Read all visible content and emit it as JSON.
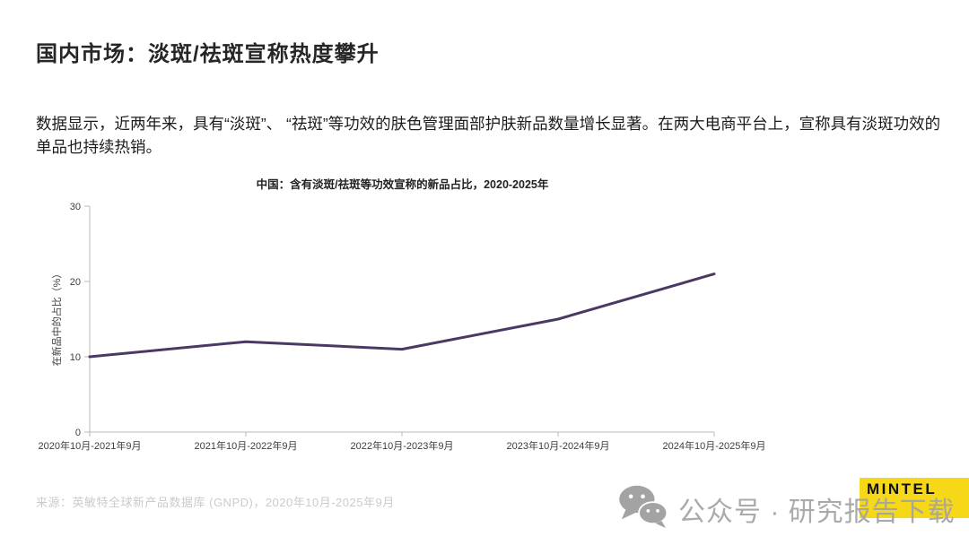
{
  "slide": {
    "title": "国内市场：淡斑/祛斑宣称热度攀升",
    "body_text": "数据显示，近两年来，具有“淡斑”、 “祛斑”等功效的肤色管理面部护肤新品数量增长显著。在两大电商平台上，宣称具有淡斑功效的单品也持续热销。",
    "source_note": "来源：英敏特全球新产品数据库 (GNPD)，2020年10月-2025年9月"
  },
  "chart_data": {
    "type": "line",
    "title": "中国：含有淡斑/祛斑等功效宣称的新品占比，2020-2025年",
    "ylabel": "在新品中的占比（%）",
    "xlabel": "",
    "categories": [
      "2020年10月-2021年9月",
      "2021年10月-2022年9月",
      "2022年10月-2023年9月",
      "2023年10月-2024年9月",
      "2024年10月-2025年9月"
    ],
    "series": [
      {
        "name": "含有淡斑/祛斑等功效宣称的新品占比",
        "values": [
          10,
          12,
          11,
          15,
          21
        ]
      }
    ],
    "ylim": [
      0,
      30
    ],
    "yticks": [
      0,
      10,
      20,
      30
    ],
    "grid": false,
    "legend_position": "none",
    "line_color": "#4a3a63",
    "axis_color": "#b8b8b8",
    "tick_label_color": "#3d3d3d"
  },
  "watermark": {
    "icon": "wechat-icon",
    "text": "公众号 · 研究报告下载"
  },
  "logo": {
    "text": "MINTEL",
    "bg_color": "#f6d818",
    "text_color": "#111111"
  }
}
